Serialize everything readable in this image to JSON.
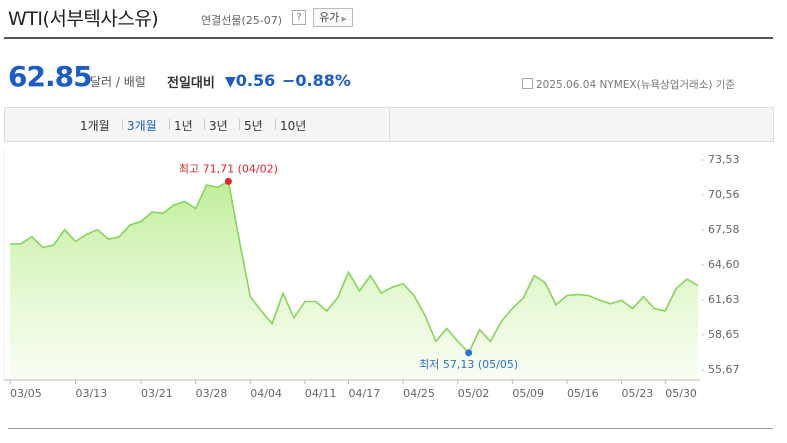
{
  "header": {
    "title": "WTI(서부텍사스유)",
    "subtitle": "연결선물(25-07)",
    "help": "?",
    "button": "유가"
  },
  "quote": {
    "price": "62.85",
    "unit": "달러 / 배럴",
    "change_label": "전일대비",
    "change": "0.56",
    "change_rate": "−0.88%",
    "basis": "2025.06.04 NYMEX(뉴욕상업거래소) 기준"
  },
  "tabs": {
    "items": [
      "1개월",
      "3개월",
      "1년",
      "3년",
      "5년",
      "10년"
    ],
    "selected": 1
  },
  "chart_data": {
    "type": "area",
    "categories": [
      "03/05",
      null,
      null,
      null,
      null,
      null,
      "03/13",
      null,
      null,
      null,
      null,
      null,
      "03/21",
      null,
      null,
      null,
      null,
      "03/28",
      null,
      null,
      null,
      null,
      "04/04",
      null,
      null,
      null,
      null,
      "04/11",
      null,
      null,
      null,
      "04/17",
      null,
      null,
      null,
      null,
      "04/25",
      null,
      null,
      null,
      null,
      "05/02",
      null,
      null,
      null,
      null,
      "05/09",
      null,
      null,
      null,
      null,
      "05/16",
      null,
      null,
      null,
      null,
      "05/23",
      null,
      null,
      null,
      "05/30",
      null,
      null,
      null
    ],
    "values": [
      66.39,
      66.4,
      67.0,
      66.1,
      66.3,
      67.6,
      66.6,
      67.2,
      67.6,
      66.8,
      67.0,
      68.0,
      68.3,
      69.1,
      69.0,
      69.7,
      70.0,
      69.4,
      71.4,
      71.2,
      71.71,
      66.7,
      61.9,
      60.7,
      59.6,
      62.2,
      60.1,
      61.5,
      61.5,
      60.7,
      61.8,
      64.0,
      62.4,
      63.7,
      62.2,
      62.7,
      63.0,
      62.0,
      60.3,
      58.1,
      59.2,
      58.1,
      57.13,
      59.1,
      58.1,
      59.8,
      60.9,
      61.8,
      63.7,
      63.1,
      61.2,
      62.0,
      62.1,
      62.0,
      61.6,
      61.3,
      61.6,
      60.9,
      61.9,
      60.9,
      60.7,
      62.6,
      63.4,
      62.85
    ],
    "color": "#86d45a",
    "ylim": [
      55.67,
      73.53
    ],
    "yticks": [
      {
        "value": 73.53,
        "label": "73,53"
      },
      {
        "value": 70.56,
        "label": "70,56"
      },
      {
        "value": 67.58,
        "label": "67,58"
      },
      {
        "value": 64.6,
        "label": "64,60"
      },
      {
        "value": 61.63,
        "label": "61,63"
      },
      {
        "value": 58.65,
        "label": "58,65"
      },
      {
        "value": 55.67,
        "label": "55,67"
      }
    ],
    "grid": false,
    "max_label": "최고 71,71 (04/02)",
    "max_color": "#e0262b",
    "min_label": "최저 57,13 (05/05)",
    "min_color": "#2b6fd6"
  }
}
